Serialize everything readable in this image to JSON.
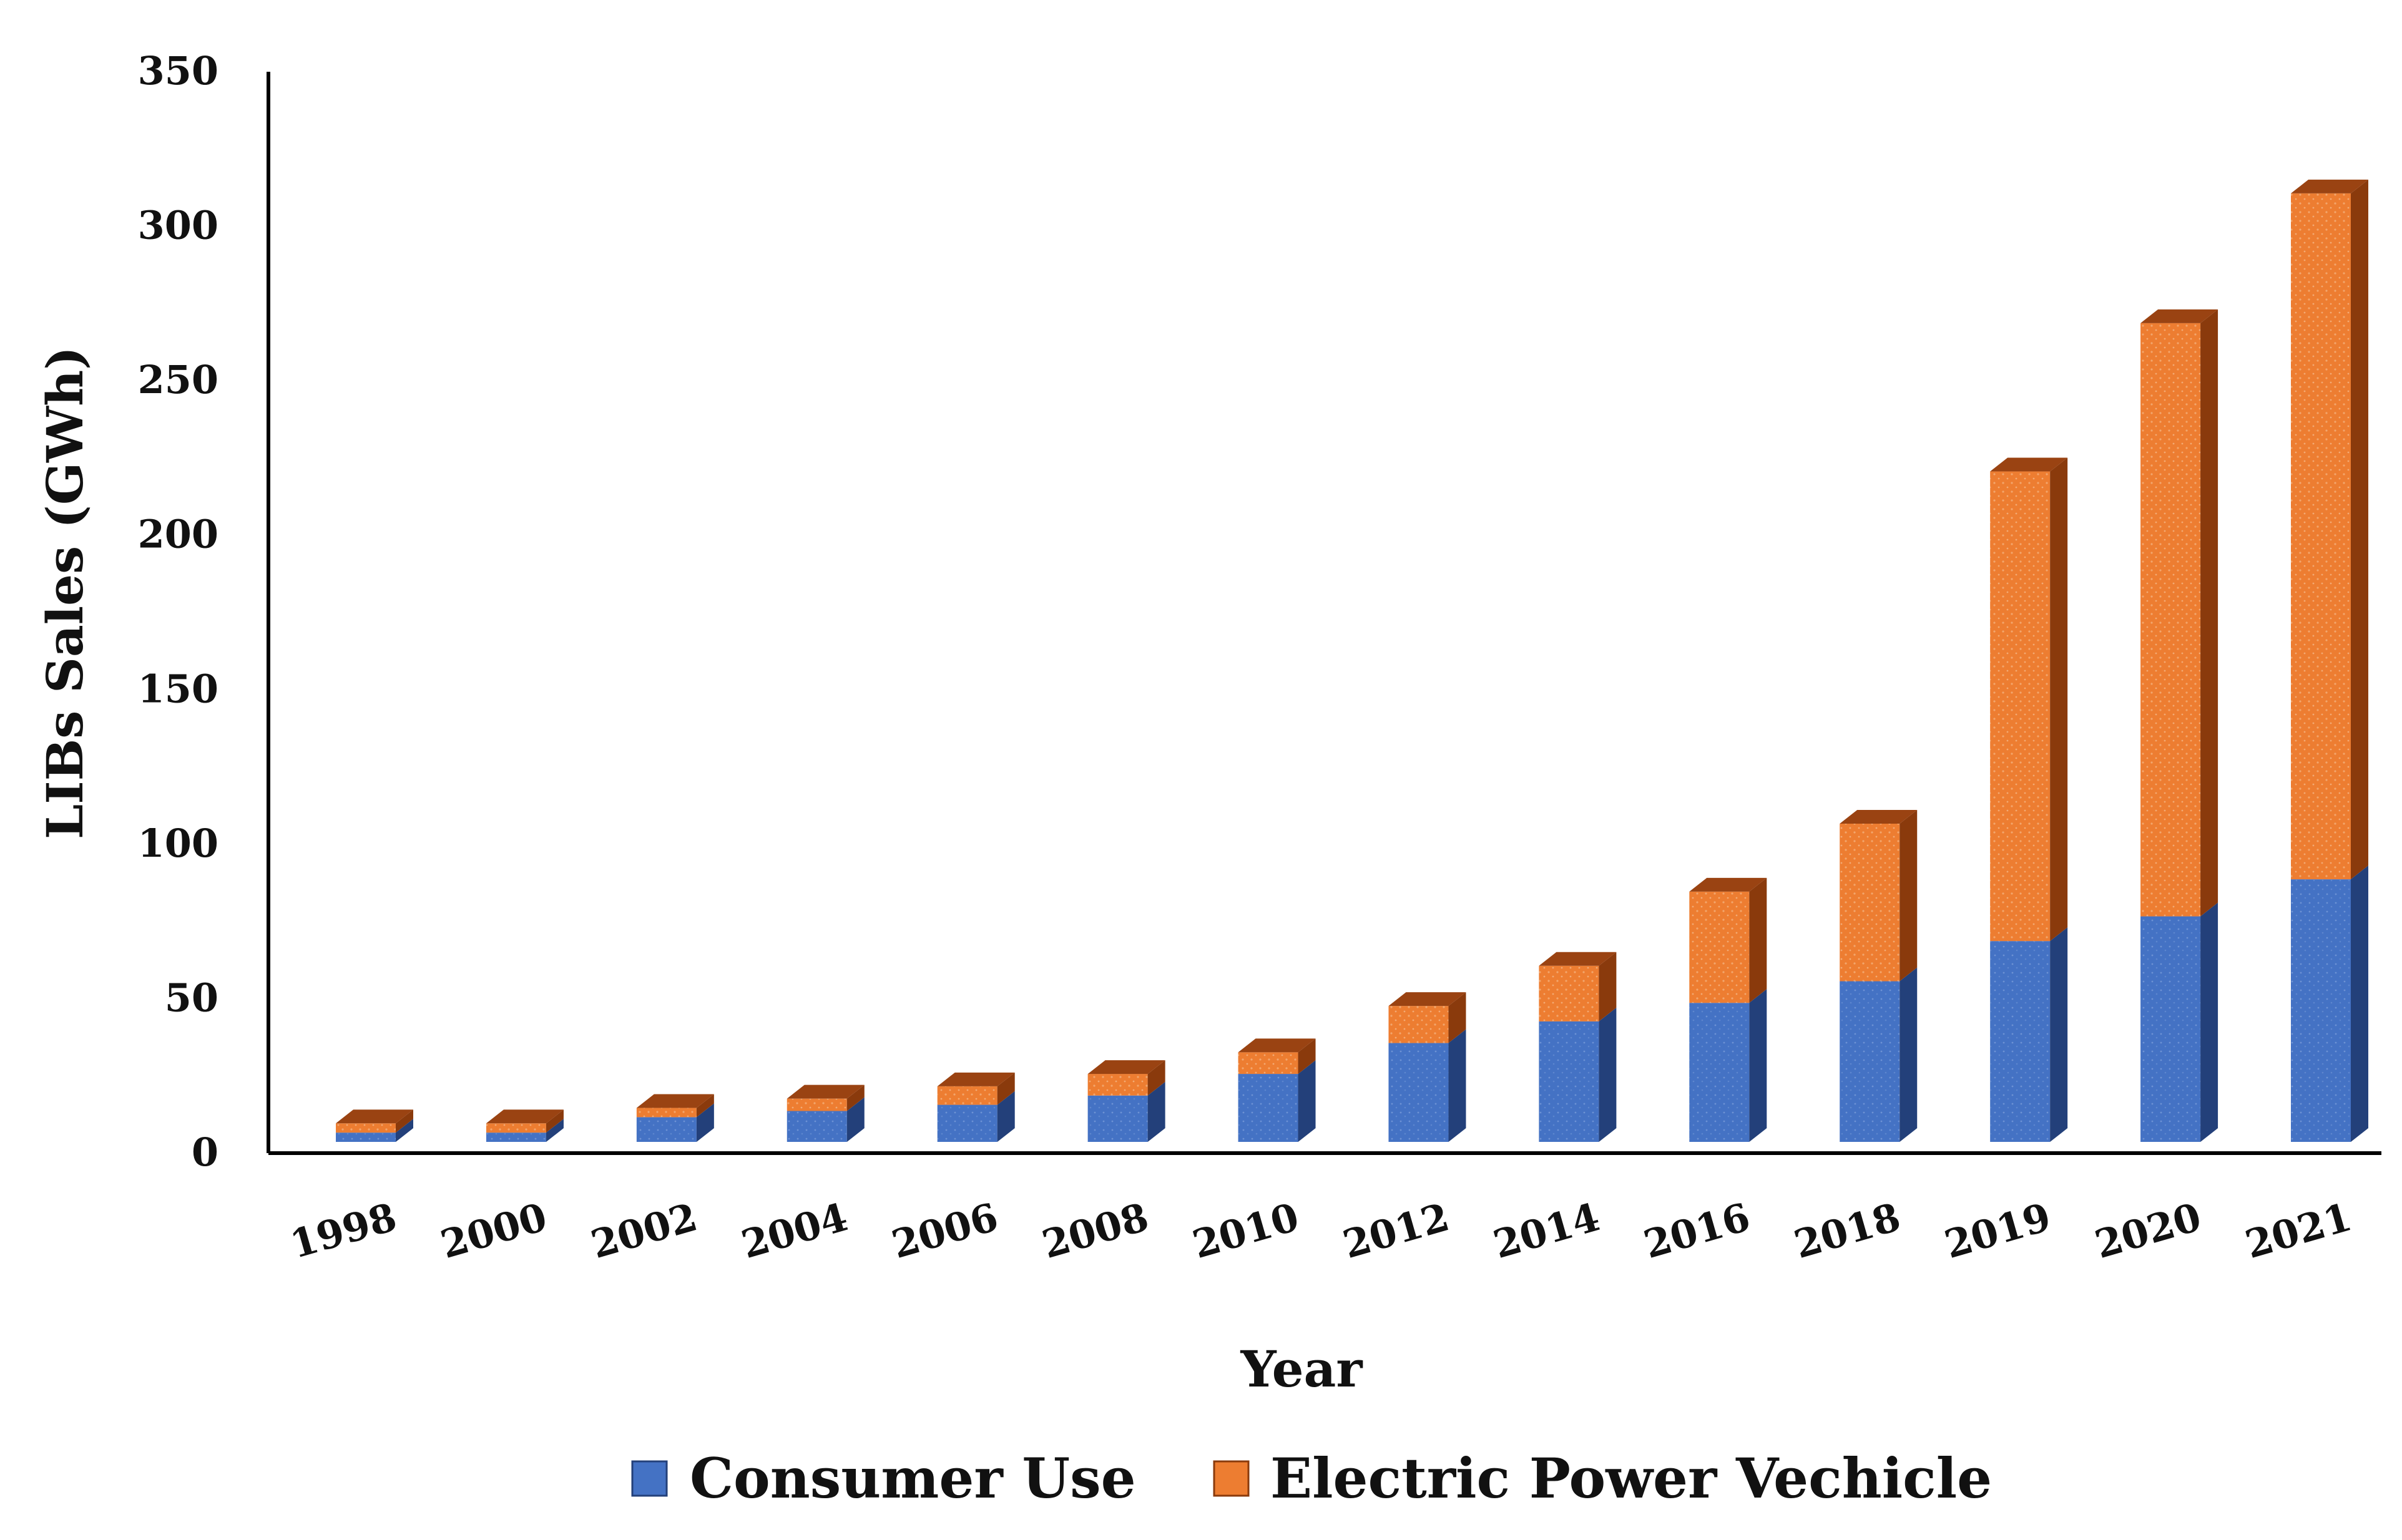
{
  "chart_data": {
    "type": "bar",
    "stacked": true,
    "style": "3d",
    "categories": [
      "1998",
      "2000",
      "2002",
      "2004",
      "2006",
      "2008",
      "2010",
      "2012",
      "2014",
      "2016",
      "2018",
      "2019",
      "2020",
      "2021"
    ],
    "series": [
      {
        "name": "Consumer Use",
        "color": "#4472C4",
        "values": [
          3,
          3,
          8,
          10,
          12,
          15,
          22,
          32,
          39,
          45,
          52,
          65,
          73,
          85
        ]
      },
      {
        "name": "Electric Power Vechicle",
        "color": "#ED7D31",
        "values": [
          3,
          3,
          3,
          4,
          6,
          7,
          7,
          12,
          18,
          36,
          51,
          152,
          192,
          222
        ]
      }
    ],
    "title": "",
    "xlabel": "Year",
    "ylabel": "LIBs Sales (GWh)",
    "ylim": [
      0,
      350
    ],
    "yticks": [
      "0",
      "50",
      "100",
      "150",
      "200",
      "250",
      "300",
      "350"
    ],
    "grid": false,
    "legend": "bottom"
  }
}
